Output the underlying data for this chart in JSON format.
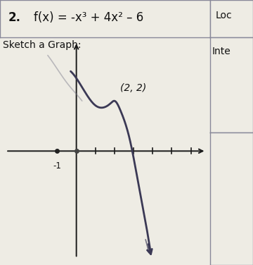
{
  "title_number": "2.",
  "function_label": "f(x) = -x³ + 4x² – 6",
  "sketch_label": "Sketch a Graph:",
  "side_label_top": "Loc",
  "side_label_mid": "Inte",
  "annotation": "(2, 2)",
  "minus1_label": "-1",
  "bg_color": "#eeece4",
  "curve_color": "#3b3955",
  "curve_color2": "#7a7a8a",
  "axis_color": "#1a1a1a",
  "text_color": "#111111",
  "border_color": "#888899",
  "title_fontsize": 12,
  "label_fontsize": 10,
  "anno_fontsize": 9,
  "x_range": [
    -4,
    7
  ],
  "y_range": [
    -5,
    5
  ],
  "ticks_x": [
    1,
    2,
    3,
    4,
    5,
    6
  ],
  "axis_origin_x": 0,
  "axis_origin_y": 0
}
